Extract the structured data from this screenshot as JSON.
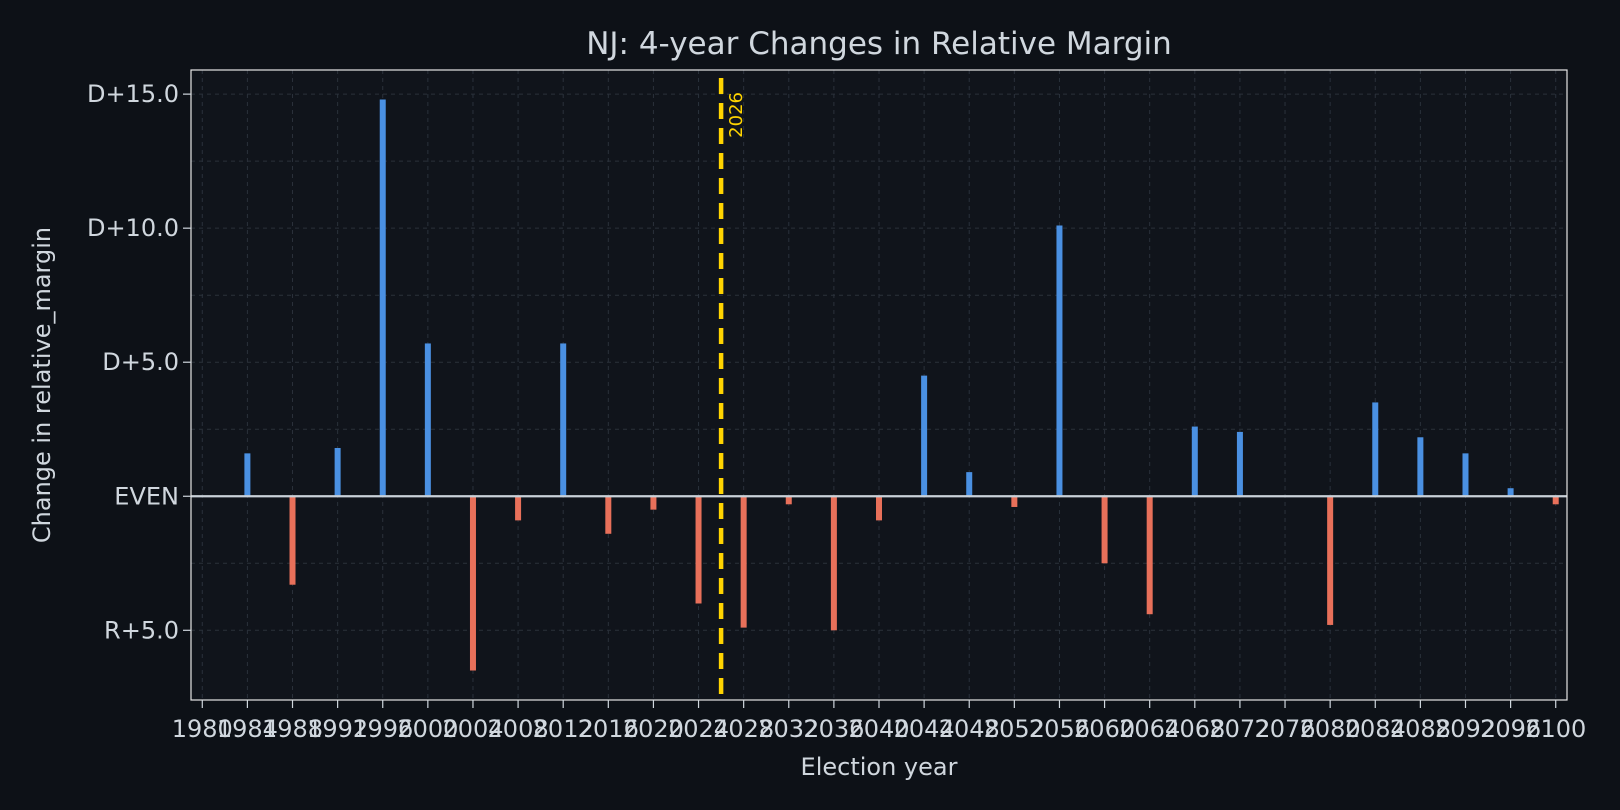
{
  "chart_data": {
    "type": "bar",
    "title": "NJ: 4-year Changes in Relative Margin",
    "xlabel": "Election year",
    "ylabel": "Change in relative_margin",
    "x": [
      1984,
      1988,
      1992,
      1996,
      2000,
      2004,
      2008,
      2012,
      2016,
      2020,
      2024,
      2028,
      2032,
      2036,
      2040,
      2044,
      2048,
      2052,
      2056,
      2060,
      2064,
      2068,
      2072,
      2076,
      2080,
      2084,
      2088,
      2092,
      2096,
      2100
    ],
    "values": [
      1.6,
      -3.3,
      1.8,
      14.8,
      5.7,
      -6.5,
      -0.9,
      5.7,
      -1.4,
      -0.5,
      -4.0,
      -4.9,
      -0.3,
      -5.0,
      -0.9,
      4.5,
      0.9,
      -0.4,
      10.1,
      -2.5,
      -4.4,
      2.6,
      2.4,
      0.0,
      -4.8,
      3.5,
      2.2,
      1.6,
      0.3,
      -0.3
    ],
    "xticks": [
      "1980",
      "1984",
      "1988",
      "1992",
      "1996",
      "2000",
      "2004",
      "2008",
      "2012",
      "2016",
      "2020",
      "2024",
      "2028",
      "2032",
      "2036",
      "2040",
      "2044",
      "2048",
      "2052",
      "2056",
      "2060",
      "2064",
      "2068",
      "2072",
      "2076",
      "2080",
      "2084",
      "2088",
      "2092",
      "2096",
      "2100"
    ],
    "yticks": [
      {
        "value": 15,
        "label": "D+15.0"
      },
      {
        "value": 10,
        "label": "D+10.0"
      },
      {
        "value": 5,
        "label": "D+5.0"
      },
      {
        "value": 0,
        "label": "EVEN"
      },
      {
        "value": -5,
        "label": "R+5.0"
      }
    ],
    "xlim": [
      1979,
      2101
    ],
    "ylim": [
      -7.6,
      15.9
    ],
    "reference_line": {
      "x": 2026,
      "label": "2026",
      "color": "#ffd400"
    },
    "colors": {
      "positive": "#4a90e2",
      "negative": "#e8705a",
      "background": "#0d1117",
      "text": "#d0d7de"
    },
    "grid": true
  }
}
